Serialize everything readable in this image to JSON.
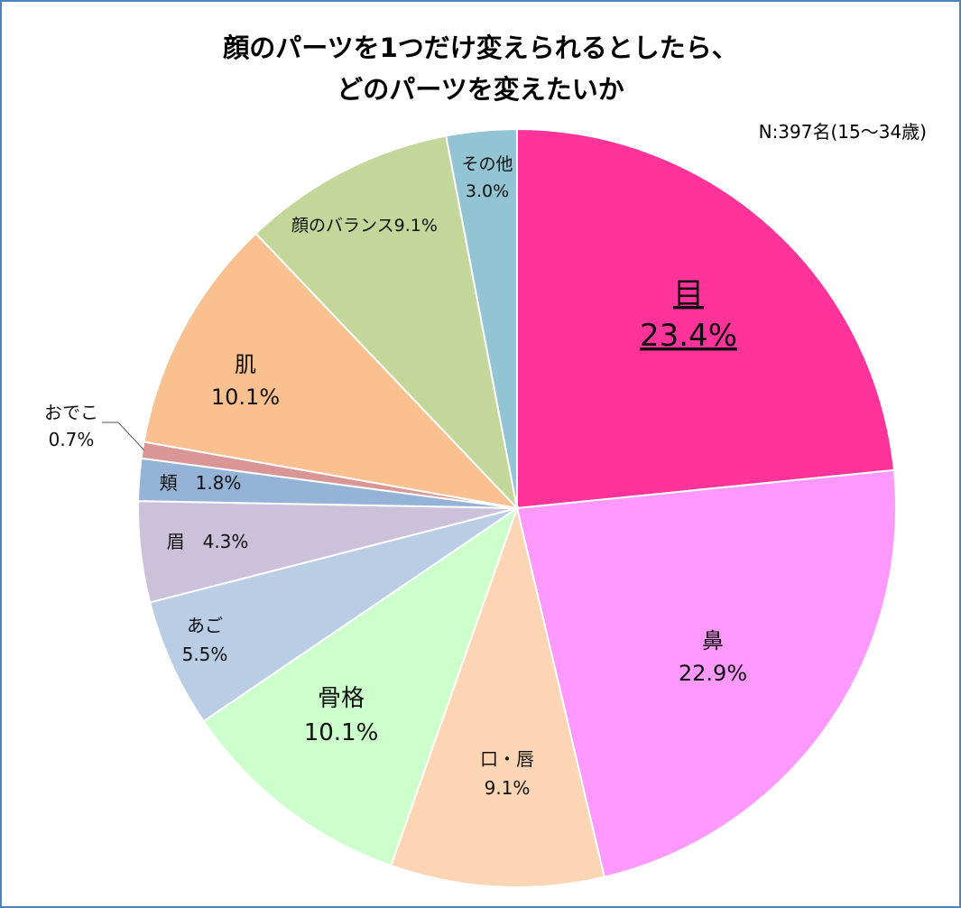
{
  "chart_data": {
    "type": "pie",
    "title": [
      "顔のパーツを1つだけ変えられるとしたら、",
      "どのパーツを変えたいか"
    ],
    "note": "N:397名(15〜34歳)",
    "slices": [
      {
        "label": "目",
        "value": 23.4,
        "value_label": "23.4%",
        "color": "#ff3399"
      },
      {
        "label": "鼻",
        "value": 22.9,
        "value_label": "22.9%",
        "color": "#ff99ff"
      },
      {
        "label": "口・唇",
        "value": 9.1,
        "value_label": "9.1%",
        "color": "#fcd5b5"
      },
      {
        "label": "骨格",
        "value": 10.1,
        "value_label": "10.1%",
        "color": "#ccffcc"
      },
      {
        "label": "あご",
        "value": 5.5,
        "value_label": "5.5%",
        "color": "#b9cde5"
      },
      {
        "label": "眉",
        "value": 4.3,
        "value_label": "4.3%",
        "color": "#ccc1da"
      },
      {
        "label": "頬",
        "value": 1.8,
        "value_label": "1.8%",
        "color": "#95b3d7"
      },
      {
        "label": "おでこ",
        "value": 0.7,
        "value_label": "0.7%",
        "color": "#d99694"
      },
      {
        "label": "肌",
        "value": 10.1,
        "value_label": "10.1%",
        "color": "#fac090"
      },
      {
        "label": "顔のバランス",
        "value": 9.1,
        "value_label": "9.1%",
        "color": "#c4d79b"
      },
      {
        "label": "その他",
        "value": 3.0,
        "value_label": "3.0%",
        "color": "#93c4d3"
      }
    ]
  }
}
